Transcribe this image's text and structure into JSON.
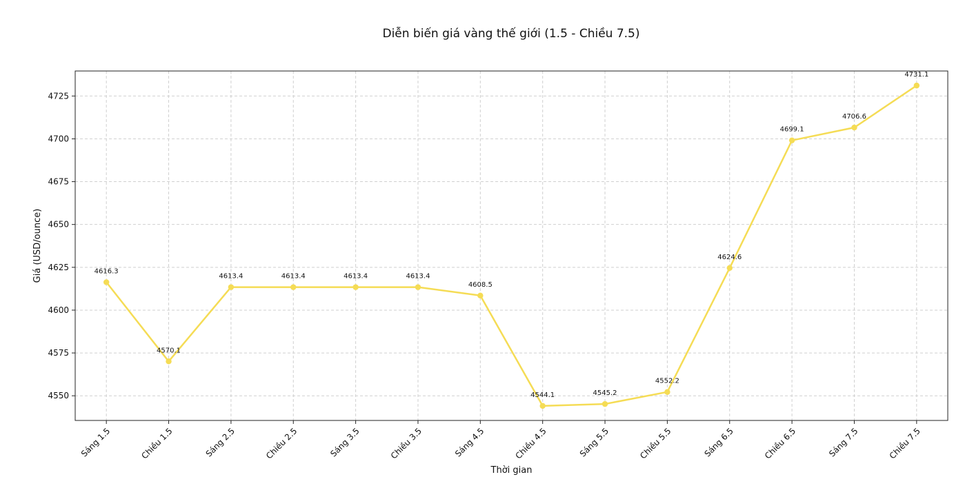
{
  "chart_data": {
    "type": "line",
    "title": "Diễn biến giá vàng thế giới (1.5 - Chiều 7.5)",
    "xlabel": "Thời gian",
    "ylabel": "Giá (USD/ounce)",
    "categories": [
      "Sáng 1.5",
      "Chiều 1.5",
      "Sáng 2.5",
      "Chiều 2.5",
      "Sáng 3.5",
      "Chiều 3.5",
      "Sáng 4.5",
      "Chiều 4.5",
      "Sáng 5.5",
      "Chiều 5.5",
      "Sáng 6.5",
      "Chiều 6.5",
      "Sáng 7.5",
      "Chiều 7.5"
    ],
    "series": [
      {
        "values": [
          4616.3,
          4570.1,
          4613.4,
          4613.4,
          4613.4,
          4613.4,
          4608.5,
          4544.1,
          4545.2,
          4552.2,
          4624.6,
          4699.1,
          4706.6,
          4731.1
        ],
        "color": "#f5dc55"
      }
    ],
    "yticks": [
      4550,
      4575,
      4600,
      4625,
      4650,
      4675,
      4700,
      4725
    ],
    "ylim": [
      4535.6,
      4739.6
    ],
    "grid": true,
    "legend": "none"
  }
}
